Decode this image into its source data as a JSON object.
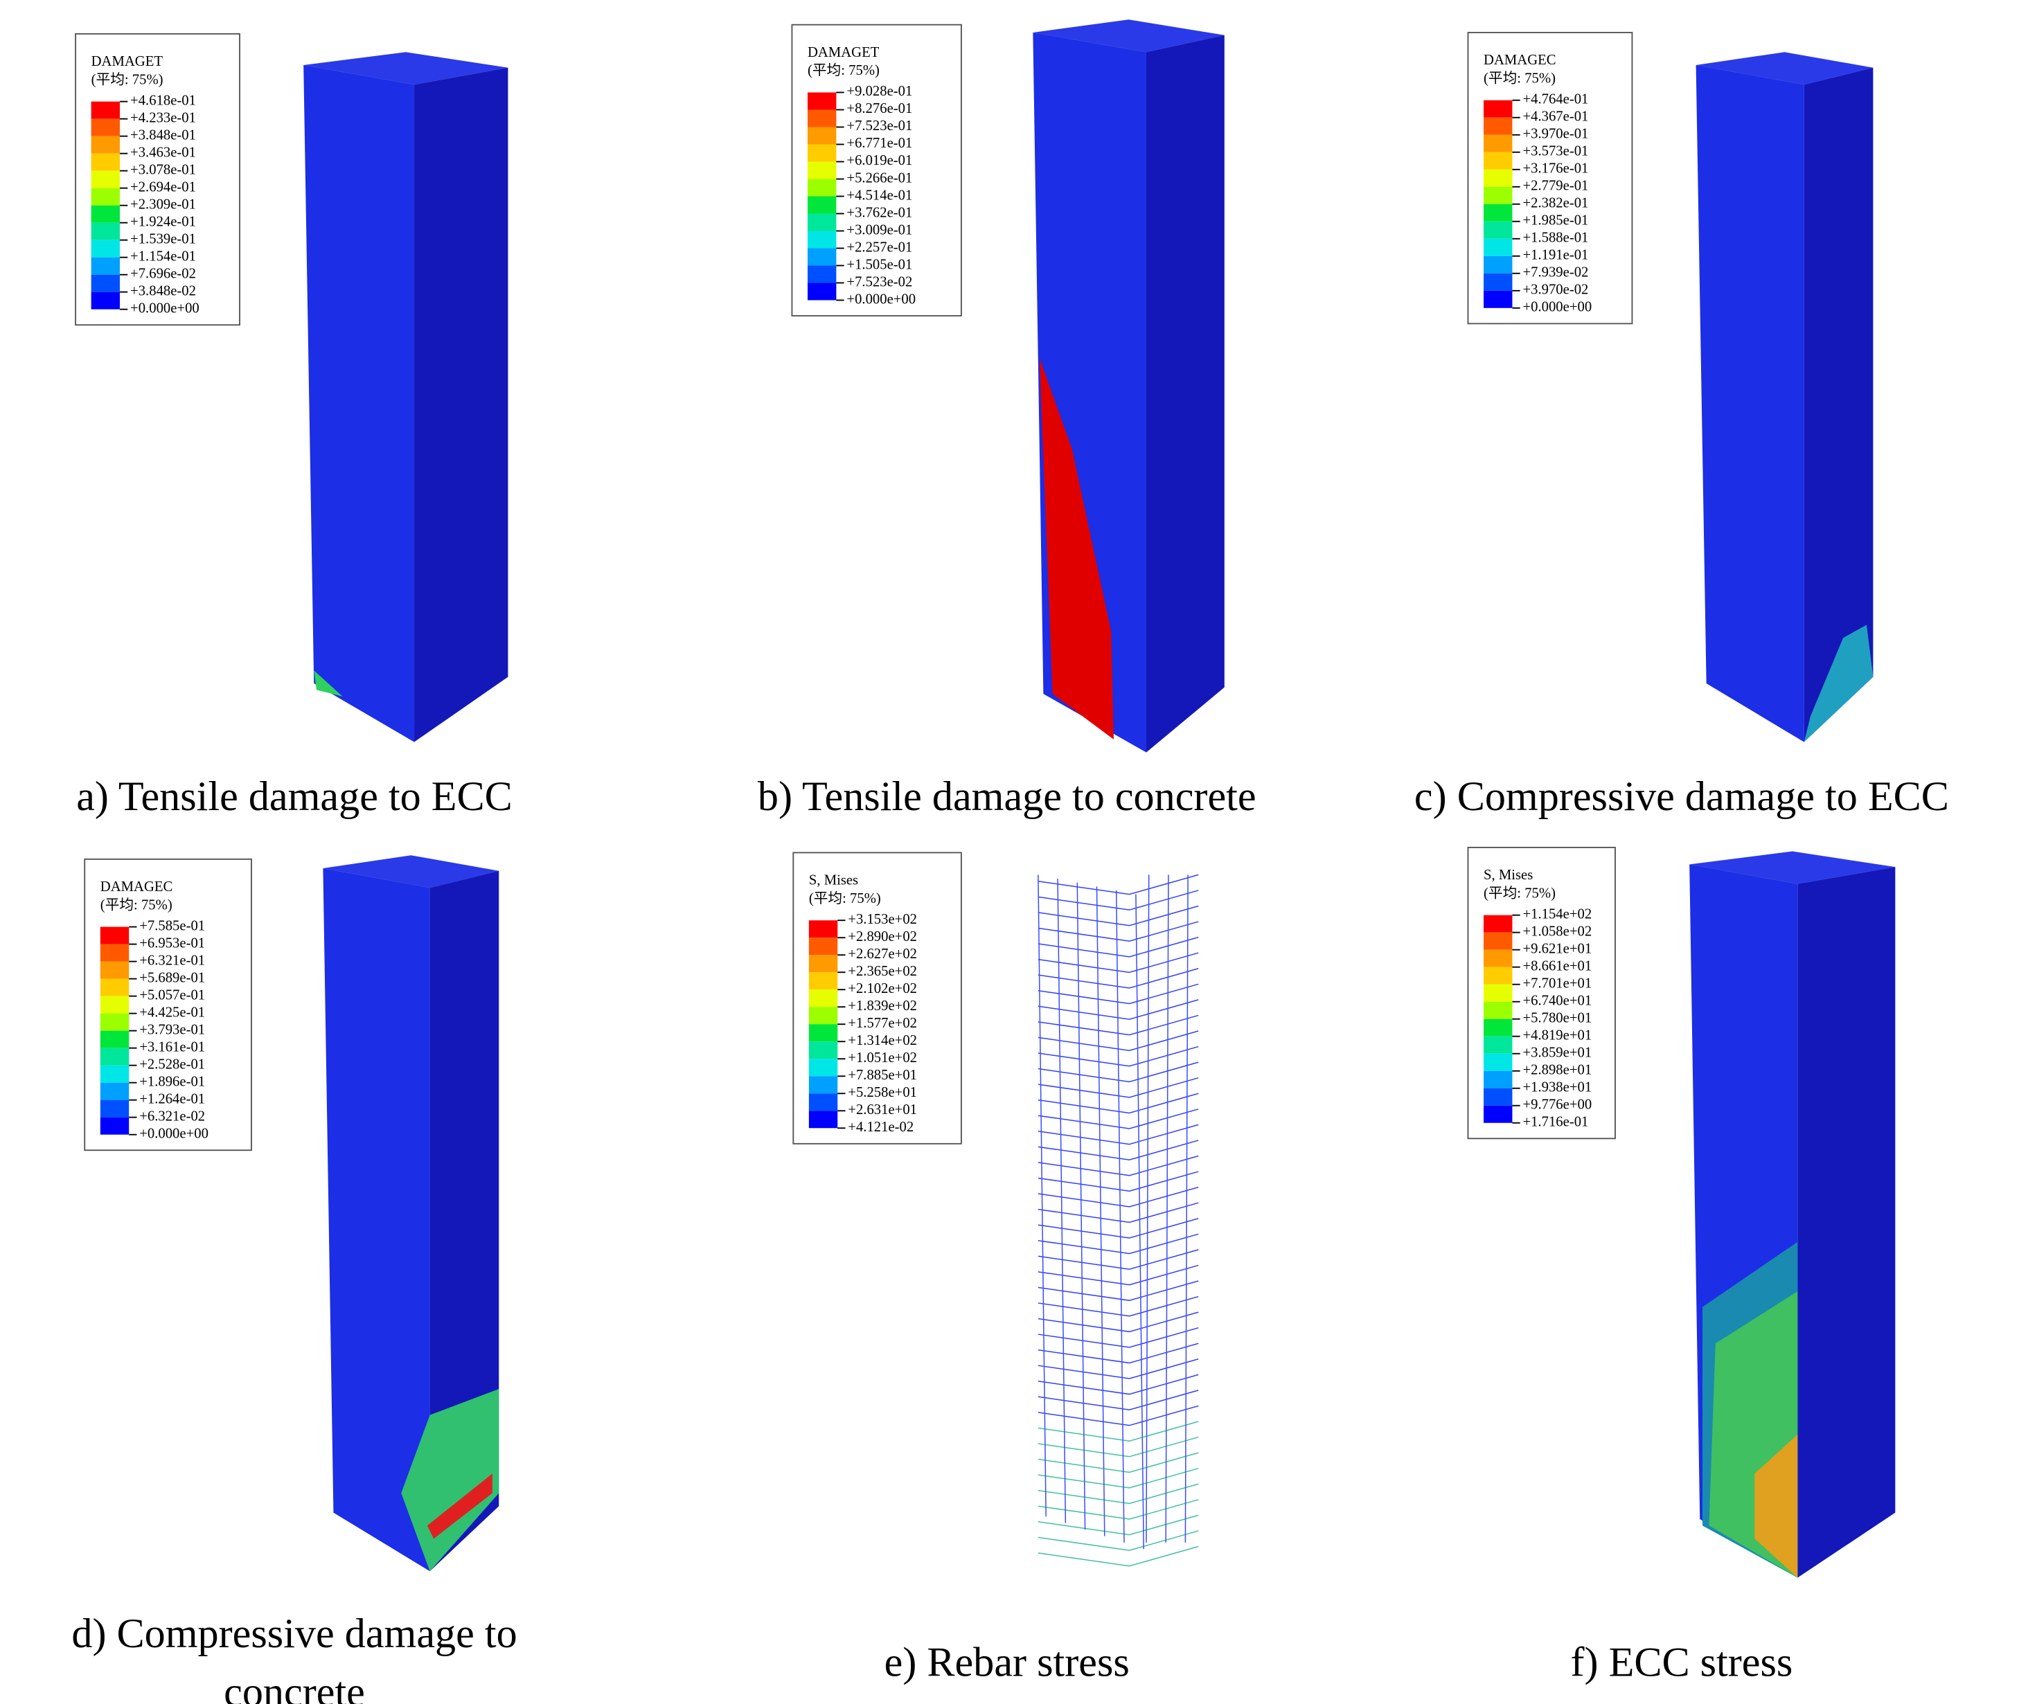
{
  "panels": [
    {
      "legend": {
        "title": "DAMAGET",
        "subtitle": "(平均: 75%)",
        "values": [
          "+4.618e-01",
          "+4.233e-01",
          "+3.848e-01",
          "+3.463e-01",
          "+3.078e-01",
          "+2.694e-01",
          "+2.309e-01",
          "+1.924e-01",
          "+1.539e-01",
          "+1.154e-01",
          "+7.696e-02",
          "+3.848e-02",
          "+0.000e+00"
        ]
      },
      "caption_lines": [
        "a) Tensile damage to ECC"
      ]
    },
    {
      "legend": {
        "title": "DAMAGET",
        "subtitle": "(平均: 75%)",
        "values": [
          "+9.028e-01",
          "+8.276e-01",
          "+7.523e-01",
          "+6.771e-01",
          "+6.019e-01",
          "+5.266e-01",
          "+4.514e-01",
          "+3.762e-01",
          "+3.009e-01",
          "+2.257e-01",
          "+1.505e-01",
          "+7.523e-02",
          "+0.000e+00"
        ]
      },
      "caption_lines": [
        "b) Tensile damage to concrete"
      ]
    },
    {
      "legend": {
        "title": "DAMAGEC",
        "subtitle": "(平均: 75%)",
        "values": [
          "+4.764e-01",
          "+4.367e-01",
          "+3.970e-01",
          "+3.573e-01",
          "+3.176e-01",
          "+2.779e-01",
          "+2.382e-01",
          "+1.985e-01",
          "+1.588e-01",
          "+1.191e-01",
          "+7.939e-02",
          "+3.970e-02",
          "+0.000e+00"
        ]
      },
      "caption_lines": [
        "c) Compressive damage to ECC"
      ]
    },
    {
      "legend": {
        "title": "DAMAGEC",
        "subtitle": "(平均: 75%)",
        "values": [
          "+7.585e-01",
          "+6.953e-01",
          "+6.321e-01",
          "+5.689e-01",
          "+5.057e-01",
          "+4.425e-01",
          "+3.793e-01",
          "+3.161e-01",
          "+2.528e-01",
          "+1.896e-01",
          "+1.264e-01",
          "+6.321e-02",
          "+0.000e+00"
        ]
      },
      "caption_lines": [
        "d) Compressive damage to",
        "concrete"
      ]
    },
    {
      "legend": {
        "title": "S, Mises",
        "subtitle": "(平均: 75%)",
        "values": [
          "+3.153e+02",
          "+2.890e+02",
          "+2.627e+02",
          "+2.365e+02",
          "+2.102e+02",
          "+1.839e+02",
          "+1.577e+02",
          "+1.314e+02",
          "+1.051e+02",
          "+7.885e+01",
          "+5.258e+01",
          "+2.631e+01",
          "+4.121e-02"
        ]
      },
      "caption_lines": [
        "e) Rebar stress"
      ]
    },
    {
      "legend": {
        "title": "S, Mises",
        "subtitle": "(平均: 75%)",
        "values": [
          "+1.154e+02",
          "+1.058e+02",
          "+9.621e+01",
          "+8.661e+01",
          "+7.701e+01",
          "+6.740e+01",
          "+5.780e+01",
          "+4.819e+01",
          "+3.859e+01",
          "+2.898e+01",
          "+1.938e+01",
          "+9.776e+00",
          "+1.716e-01"
        ]
      },
      "caption_lines": [
        "f) ECC stress"
      ]
    }
  ]
}
